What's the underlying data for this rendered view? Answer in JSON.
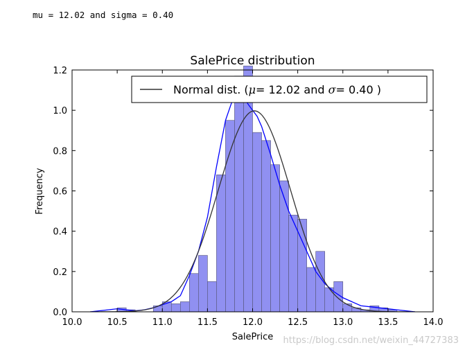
{
  "console_output": "mu = 12.02 and sigma = 0.40",
  "watermark": "https://blog.csdn.net/weixin_44727383",
  "chart_data": {
    "type": "bar",
    "title": "SalePrice distribution",
    "xlabel": "SalePrice",
    "ylabel": "Frequency",
    "xlim": [
      10.0,
      14.0
    ],
    "ylim": [
      0.0,
      1.2
    ],
    "xticks": [
      "10.0",
      "10.5",
      "11.0",
      "11.5",
      "12.0",
      "12.5",
      "13.0",
      "13.5",
      "14.0"
    ],
    "yticks": [
      "0.0",
      "0.2",
      "0.4",
      "0.6",
      "0.8",
      "1.0",
      "1.2"
    ],
    "legend": {
      "position": "top-right",
      "label_prefix": "Normal dist. (",
      "mu_symbol": "μ",
      "mu_eq": "= 12.02 and ",
      "sigma_symbol": "σ",
      "sigma_eq": "= 0.40 )"
    },
    "histogram": {
      "bin_width": 0.1,
      "bin_starts": [
        10.2,
        10.3,
        10.4,
        10.5,
        10.6,
        10.7,
        10.8,
        10.9,
        11.0,
        11.1,
        11.2,
        11.3,
        11.4,
        11.5,
        11.6,
        11.7,
        11.8,
        11.9,
        12.0,
        12.1,
        12.2,
        12.3,
        12.4,
        12.5,
        12.6,
        12.7,
        12.8,
        12.9,
        13.0,
        13.1,
        13.2,
        13.3,
        13.4,
        13.5,
        13.6,
        13.7
      ],
      "densities": [
        0.0,
        0.0,
        0.0,
        0.02,
        0.01,
        0.0,
        0.0,
        0.03,
        0.05,
        0.04,
        0.05,
        0.19,
        0.28,
        0.15,
        0.68,
        0.95,
        1.17,
        1.22,
        0.89,
        0.85,
        0.73,
        0.65,
        0.48,
        0.46,
        0.22,
        0.3,
        0.12,
        0.15,
        0.04,
        0.02,
        0.01,
        0.03,
        0.02,
        0.01,
        0.0,
        0.0
      ],
      "color": "#8a8af0"
    },
    "kde": {
      "name": "KDE",
      "color": "#0000ff",
      "x": [
        10.2,
        10.4,
        10.5,
        10.6,
        10.7,
        10.8,
        10.9,
        11.0,
        11.1,
        11.2,
        11.3,
        11.4,
        11.5,
        11.6,
        11.7,
        11.8,
        11.85,
        11.9,
        11.95,
        12.0,
        12.05,
        12.1,
        12.2,
        12.3,
        12.4,
        12.5,
        12.6,
        12.7,
        12.8,
        12.9,
        13.0,
        13.2,
        13.4,
        13.6,
        13.8
      ],
      "y": [
        0.0,
        0.01,
        0.015,
        0.01,
        0.005,
        0.01,
        0.02,
        0.035,
        0.05,
        0.08,
        0.18,
        0.3,
        0.47,
        0.72,
        0.95,
        1.08,
        1.1,
        1.07,
        1.03,
        1.0,
        0.97,
        0.92,
        0.78,
        0.63,
        0.5,
        0.4,
        0.3,
        0.2,
        0.14,
        0.1,
        0.07,
        0.03,
        0.02,
        0.01,
        0.0
      ]
    },
    "normal_fit": {
      "name": "Normal dist.",
      "color": "#333333",
      "mu": 12.02,
      "sigma": 0.4,
      "x_range": [
        10.2,
        13.8
      ]
    }
  }
}
